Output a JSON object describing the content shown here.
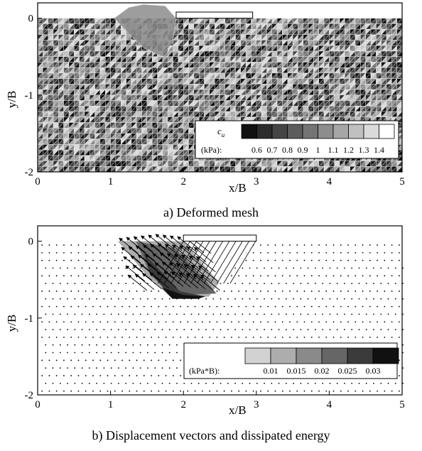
{
  "chart_data": [
    {
      "type": "heatmap",
      "panel": "a",
      "caption": "a) Deformed mesh",
      "xlabel": "x/B",
      "ylabel": "y/B",
      "xlim": [
        0,
        5
      ],
      "ylim": [
        -2,
        0.2
      ],
      "xticks": [
        "0",
        "1",
        "2",
        "3",
        "4",
        "5"
      ],
      "yticks": [
        "0",
        "-1",
        "-2"
      ],
      "footing": {
        "x": [
          1.9,
          2.95
        ],
        "y": [
          0.0,
          0.08
        ]
      },
      "legend": {
        "title": "c",
        "title_sub": "u",
        "unit": "(kPa):",
        "levels": [
          "0.6",
          "0.7",
          "0.8",
          "0.9",
          "1",
          "1.1",
          "1.2",
          "1.3",
          "1.4"
        ],
        "colors": [
          "#111111",
          "#2c2c2c",
          "#454545",
          "#5c5c5c",
          "#747474",
          "#8d8d8d",
          "#a6a6a6",
          "#c0c0c0",
          "#dadada",
          "#ffffff"
        ]
      }
    },
    {
      "type": "heatmap",
      "panel": "b",
      "caption": "b) Displacement vectors and dissipated energy",
      "xlabel": "x/B",
      "ylabel": "y/B",
      "xlim": [
        0,
        5
      ],
      "ylim": [
        -2,
        0.2
      ],
      "xticks": [
        "0",
        "1",
        "2",
        "3",
        "4",
        "5"
      ],
      "yticks": [
        "0",
        "-1",
        "-2"
      ],
      "footing": {
        "x": [
          2.0,
          3.0
        ],
        "y": [
          0.0,
          0.08
        ]
      },
      "legend": {
        "unit": "(kPa*B):",
        "levels": [
          "0.01",
          "0.015",
          "0.02",
          "0.025",
          "0.03"
        ],
        "colors": [
          "#d2d2d2",
          "#adadad",
          "#8a8a8a",
          "#666666",
          "#3b3b3b",
          "#111111"
        ]
      }
    }
  ]
}
